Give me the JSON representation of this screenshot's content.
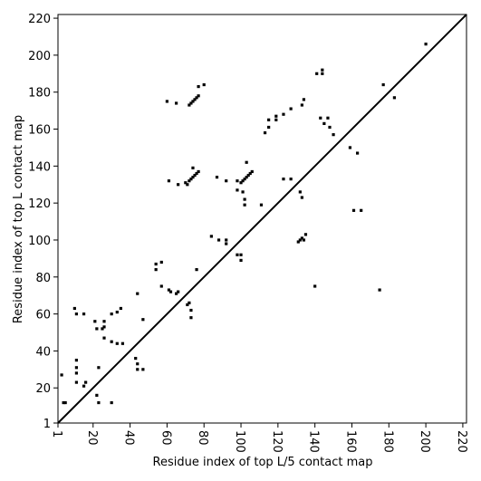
{
  "chart_data": {
    "type": "scatter",
    "xlabel": "Residue index of top L/5 contact map",
    "ylabel": "Residue index of top L contact map",
    "color": "#000000",
    "xlim": [
      1,
      222
    ],
    "ylim": [
      1,
      222
    ],
    "xticks": [
      1,
      20,
      40,
      60,
      80,
      100,
      120,
      140,
      160,
      180,
      200,
      220
    ],
    "yticks": [
      1,
      20,
      40,
      60,
      80,
      100,
      120,
      140,
      160,
      180,
      200,
      220
    ],
    "x": [
      3,
      4,
      5,
      11,
      11,
      11,
      11,
      15,
      16,
      22,
      23,
      23,
      21,
      22,
      25,
      26,
      26,
      26,
      30,
      30,
      33,
      35,
      33,
      36,
      43,
      44,
      44,
      47,
      30,
      10,
      11,
      15,
      44,
      47,
      54,
      54,
      57,
      57,
      61,
      62,
      65,
      66,
      71,
      72,
      73,
      73,
      76,
      61,
      66,
      70,
      71,
      72,
      73,
      74,
      75,
      76,
      77,
      60,
      65,
      72,
      73,
      74,
      75,
      76,
      77,
      77,
      80,
      74,
      84,
      88,
      92,
      92,
      87,
      92,
      98,
      100,
      100,
      98,
      98,
      101,
      102,
      102,
      100,
      101,
      102,
      103,
      104,
      105,
      106,
      103,
      111,
      113,
      115,
      115,
      119,
      119,
      123,
      127,
      123,
      127,
      133,
      134,
      141,
      144,
      144,
      143,
      145,
      148,
      150,
      147,
      200,
      177,
      183,
      132,
      133,
      133,
      131,
      132,
      134,
      135,
      140,
      159,
      163,
      161,
      165,
      175
    ],
    "values": [
      27,
      12,
      12,
      35,
      31,
      28,
      23,
      21,
      23,
      16,
      12,
      31,
      56,
      52,
      52,
      56,
      47,
      53,
      45,
      60,
      61,
      63,
      44,
      44,
      36,
      33,
      30,
      30,
      12,
      63,
      60,
      60,
      71,
      57,
      87,
      84,
      88,
      75,
      73,
      72,
      71,
      72,
      65,
      66,
      62,
      58,
      84,
      132,
      130,
      131,
      130,
      132,
      133,
      134,
      135,
      136,
      137,
      175,
      174,
      173,
      174,
      175,
      176,
      177,
      178,
      183,
      184,
      139,
      102,
      100,
      100,
      98,
      134,
      132,
      92,
      92,
      89,
      132,
      127,
      126,
      122,
      119,
      131,
      132,
      133,
      134,
      135,
      136,
      137,
      142,
      119,
      158,
      161,
      165,
      165,
      167,
      168,
      171,
      133,
      133,
      173,
      176,
      190,
      192,
      190,
      166,
      163,
      161,
      157,
      166,
      206,
      184,
      177,
      126,
      123,
      101,
      99,
      100,
      100,
      103,
      75,
      150,
      147,
      116,
      116,
      73
    ]
  }
}
